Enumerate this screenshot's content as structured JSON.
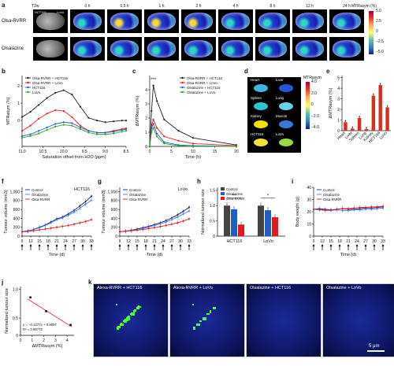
{
  "panels": [
    "a",
    "b",
    "c",
    "d",
    "e",
    "f",
    "g",
    "h",
    "i",
    "j",
    "k"
  ],
  "a": {
    "t2w_label": "T2w",
    "time_labels": [
      "0 h",
      "0.5 h",
      "1 h",
      "2 h",
      "4 h",
      "8 h",
      "12 h",
      "24 h"
    ],
    "row_labels": [
      "Olsa-RVRR",
      "Olsalazine"
    ],
    "tumor_labels": [
      "HCT116",
      "LoVo"
    ],
    "colorbar_title": "MTRasym (%)",
    "colorbar_ticks": [
      "5.0",
      "2.5",
      "0",
      "−2.5",
      "−5.0"
    ]
  },
  "b": {
    "ylabel": "MTRasym (%)",
    "xlabel": "Saturation offset from H2O (ppm)",
    "x_ticks": [
      "11.0",
      "10.5",
      "10.0",
      "9.5",
      "9.0",
      "8.5"
    ],
    "y_ticks": [
      "0",
      "1",
      "2"
    ],
    "legend": [
      "Olsa-RVRR + HCT116",
      "Olsa-RVRR + LoVo",
      "HCT116",
      "LoVo"
    ],
    "colors": [
      "#222222",
      "#e31a1c",
      "#1f5fbf",
      "#2ca02c"
    ]
  },
  "c": {
    "ylabel": "ΔMTRasym (%)",
    "xlabel": "Time (h)",
    "x_ticks": [
      "0",
      "5",
      "10",
      "15",
      "20"
    ],
    "y_ticks": [
      "0",
      "1",
      "2",
      "3",
      "4"
    ],
    "stars": "***",
    "legend": [
      "Olsa-RVRR + HCT116",
      "Olsa-RVRR + LoVo",
      "Olsalazine + HCT116",
      "Olsalazine + LoVo"
    ],
    "colors": [
      "#222222",
      "#e31a1c",
      "#1f5fbf",
      "#2ca02c"
    ]
  },
  "d": {
    "organs": [
      "Heart",
      "Liver",
      "Spleen",
      "Lung",
      "Kidney",
      "Muscle",
      "HCT116",
      "LoVo"
    ],
    "colorbar_title": "MTRasym",
    "colorbar_ticks": [
      "4.0",
      "2.0",
      "0",
      "−2.0",
      "−4.0"
    ]
  },
  "e": {
    "ylabel": "ΔMTRasym (%)",
    "y_ticks": [
      "0",
      "1",
      "2",
      "3",
      "4",
      "5"
    ],
    "categories": [
      "Heart",
      "Liver",
      "Spleen",
      "Lung",
      "Kidney",
      "HCT116",
      "LoVo"
    ]
  },
  "f": {
    "title": "HCT116",
    "ylabel": "Tumour volume (mm3)",
    "xlabel": "Time (d)",
    "x_ticks": [
      "9",
      "12",
      "15",
      "18",
      "21",
      "24",
      "27",
      "30",
      "33"
    ],
    "y_ticks": [
      "0",
      "200",
      "400",
      "600",
      "800",
      "1,000"
    ],
    "legend": [
      "Control",
      "Olsalazine",
      "Olsa-RVRR"
    ]
  },
  "g": {
    "title": "LoVo",
    "ylabel": "Tumour volume (mm3)",
    "xlabel": "Time (d)",
    "x_ticks": [
      "9",
      "12",
      "15",
      "18",
      "21",
      "24",
      "27",
      "30",
      "33"
    ],
    "y_ticks": [
      "0",
      "200",
      "400",
      "600",
      "800",
      "1,000"
    ],
    "legend": [
      "Control",
      "Olsalazine",
      "Olsa-RVRR"
    ]
  },
  "h": {
    "ylabel": "Normalized tumour size",
    "y_ticks": [
      "0",
      "0.5",
      "1.0",
      "1.5"
    ],
    "groups": [
      "HCT116",
      "LoVo"
    ],
    "legend": [
      "Control",
      "Olsalazine",
      "Olsa-RVRR"
    ],
    "sig": [
      "**",
      "*"
    ]
  },
  "i": {
    "ylabel": "Body weight (g)",
    "xlabel": "Time (d)",
    "x_ticks": [
      "9",
      "12",
      "15",
      "18",
      "21",
      "24",
      "27",
      "30",
      "33"
    ],
    "y_ticks": [
      "0",
      "10",
      "20",
      "30",
      "40"
    ],
    "legend": [
      "Control",
      "Olsalazine",
      "Olsa-RVRR"
    ]
  },
  "j": {
    "ylabel": "Normalized tumour size",
    "xlabel": "ΔMTRasym (%)",
    "x_ticks": [
      "0",
      "1",
      "2",
      "3",
      "4"
    ],
    "y_ticks": [
      "0",
      "0.5",
      "1.0"
    ],
    "equation": "y = −0.1277x + 0.9097",
    "r2": "R² = 0.98772"
  },
  "k": {
    "labels": [
      "Alexa-RVRR + HCT116",
      "Alexa-RVRR + LoVo",
      "Olsalazine + HCT116",
      "Olsalazine + LoVo"
    ],
    "scale_bar": "5 μm"
  },
  "chart_data": [
    {
      "panel": "b",
      "type": "line",
      "x": [
        11.0,
        10.8,
        10.6,
        10.4,
        10.2,
        10.0,
        9.8,
        9.6,
        9.4,
        9.2,
        9.0,
        8.8,
        8.6,
        8.5
      ],
      "series": [
        {
          "name": "Olsa-RVRR + HCT116",
          "values": [
            0.2,
            0.5,
            0.9,
            1.3,
            1.6,
            1.75,
            1.5,
            0.8,
            0.15,
            0.0,
            -0.1,
            -0.05,
            0.0,
            0.0
          ]
        },
        {
          "name": "Olsa-RVRR + LoVo",
          "values": [
            -0.6,
            -0.3,
            0.1,
            0.4,
            0.6,
            0.55,
            0.2,
            -0.3,
            -0.6,
            -0.7,
            -0.7,
            -0.6,
            -0.5,
            -0.45
          ]
        },
        {
          "name": "HCT116",
          "values": [
            -0.9,
            -0.8,
            -0.6,
            -0.4,
            -0.2,
            -0.1,
            -0.15,
            -0.4,
            -0.6,
            -0.7,
            -0.7,
            -0.65,
            -0.55,
            -0.5
          ]
        },
        {
          "name": "LoVo",
          "values": [
            -1.0,
            -0.9,
            -0.75,
            -0.55,
            -0.35,
            -0.25,
            -0.3,
            -0.5,
            -0.7,
            -0.8,
            -0.8,
            -0.75,
            -0.65,
            -0.6
          ]
        }
      ],
      "xlim": [
        11.0,
        8.5
      ],
      "ylim": [
        -1.5,
        2.6
      ]
    },
    {
      "panel": "c",
      "type": "line",
      "x": [
        0,
        0.5,
        1,
        2,
        4,
        8,
        12,
        24
      ],
      "series": [
        {
          "name": "Olsa-RVRR + HCT116",
          "values": [
            0,
            2.5,
            4.3,
            3.2,
            1.9,
            1.1,
            0.6,
            0.1
          ]
        },
        {
          "name": "Olsa-RVRR + LoVo",
          "values": [
            0,
            1.5,
            1.9,
            1.3,
            0.7,
            0.4,
            0.2,
            0.05
          ]
        },
        {
          "name": "Olsalazine + HCT116",
          "values": [
            0,
            1.3,
            1.6,
            0.9,
            0.3,
            0.1,
            0.05,
            0.0
          ]
        },
        {
          "name": "Olsalazine + LoVo",
          "values": [
            0,
            1.0,
            1.3,
            0.7,
            0.2,
            0.05,
            0.0,
            0.0
          ]
        }
      ],
      "xlim": [
        0,
        24
      ],
      "ylim": [
        0,
        5
      ]
    },
    {
      "panel": "e",
      "type": "bar",
      "categories": [
        "Heart",
        "Liver",
        "Spleen",
        "Lung",
        "Kidney",
        "HCT116",
        "LoVo"
      ],
      "values": [
        0.8,
        0.2,
        1.2,
        0.15,
        3.3,
        4.3,
        2.2
      ],
      "ylim": [
        0,
        5.2
      ]
    },
    {
      "panel": "f",
      "type": "line",
      "x": [
        9,
        11,
        13,
        15,
        17,
        19,
        21,
        23,
        25,
        27,
        29,
        31,
        33
      ],
      "series": [
        {
          "name": "Control",
          "values": [
            100,
            120,
            150,
            200,
            250,
            320,
            390,
            430,
            500,
            580,
            680,
            780,
            900
          ]
        },
        {
          "name": "Olsalazine",
          "values": [
            100,
            115,
            145,
            190,
            240,
            300,
            370,
            410,
            470,
            540,
            630,
            720,
            810
          ]
        },
        {
          "name": "Olsa-RVRR",
          "values": [
            100,
            105,
            120,
            140,
            160,
            180,
            200,
            220,
            240,
            270,
            300,
            330,
            370
          ]
        }
      ],
      "ylim": [
        0,
        1100
      ]
    },
    {
      "panel": "g",
      "type": "line",
      "x": [
        9,
        11,
        13,
        15,
        17,
        19,
        21,
        23,
        25,
        27,
        29,
        31,
        33
      ],
      "series": [
        {
          "name": "Control",
          "values": [
            100,
            115,
            135,
            160,
            190,
            220,
            260,
            300,
            350,
            410,
            480,
            560,
            650
          ]
        },
        {
          "name": "Olsalazine",
          "values": [
            100,
            112,
            130,
            150,
            175,
            205,
            240,
            275,
            320,
            370,
            430,
            500,
            570
          ]
        },
        {
          "name": "Olsa-RVRR",
          "values": [
            100,
            108,
            120,
            135,
            150,
            170,
            190,
            215,
            240,
            270,
            300,
            340,
            390
          ]
        }
      ],
      "ylim": [
        0,
        1100
      ]
    },
    {
      "panel": "h",
      "type": "bar",
      "categories": [
        "HCT116",
        "LoVo"
      ],
      "series": [
        {
          "name": "Control",
          "values": [
            1.0,
            1.0
          ]
        },
        {
          "name": "Olsalazine",
          "values": [
            0.88,
            0.85
          ]
        },
        {
          "name": "Olsa-RVRR",
          "values": [
            0.38,
            0.62
          ]
        }
      ],
      "ylim": [
        0,
        1.6
      ]
    },
    {
      "panel": "i",
      "type": "line",
      "x": [
        9,
        11,
        13,
        15,
        17,
        19,
        21,
        23,
        25,
        27,
        29,
        31,
        33
      ],
      "series": [
        {
          "name": "Control",
          "values": [
            22,
            22.5,
            22,
            21.5,
            22,
            22.5,
            22,
            22,
            22.5,
            23,
            23,
            23.5,
            24
          ]
        },
        {
          "name": "Olsalazine",
          "values": [
            22,
            21.5,
            21,
            21,
            21.5,
            21,
            21,
            21.5,
            21.5,
            22,
            22,
            22.5,
            23
          ]
        },
        {
          "name": "Olsa-RVRR",
          "values": [
            22,
            22,
            21.5,
            21.5,
            22,
            22.5,
            22.5,
            23,
            23.5,
            23.5,
            24,
            24,
            24.5
          ]
        }
      ],
      "ylim": [
        0,
        40
      ]
    },
    {
      "panel": "j",
      "type": "scatter",
      "points": [
        {
          "x": 0.85,
          "y": 0.86
        },
        {
          "x": 2.2,
          "y": 0.62
        },
        {
          "x": 4.3,
          "y": 0.38
        }
      ],
      "fit": {
        "slope": -0.1277,
        "intercept": 0.9097
      },
      "xlim": [
        0,
        4.6
      ],
      "ylim": [
        0.2,
        1.05
      ]
    }
  ]
}
